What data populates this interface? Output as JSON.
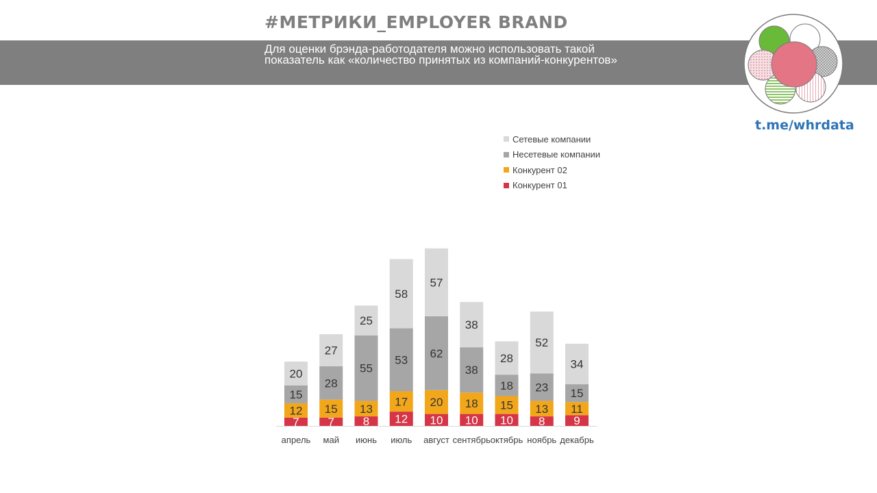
{
  "header": {
    "title": "#МЕТРИКИ_EMPLOYER BRAND",
    "subtitle": "Для оценки брэнда-работодателя можно использовать такой показатель как «количество принятых из компаний-конкурентов»",
    "link": "t.me/whrdata",
    "banner_color": "#7f7f7f"
  },
  "logo": {
    "icon": "logo-circles-icon",
    "colors": [
      "#6aba3a",
      "#e37584",
      "#c9c9c9",
      "#f1d3d9",
      "#a9d08e",
      "#ffffff"
    ]
  },
  "chart_data": {
    "type": "bar",
    "stacked": true,
    "title": "",
    "xlabel": "",
    "ylabel": "",
    "grid": false,
    "legend_position": "top-right",
    "categories": [
      "апрель",
      "май",
      "июнь",
      "июль",
      "август",
      "сентябрь",
      "октябрь",
      "ноябрь",
      "декабрь"
    ],
    "series": [
      {
        "name": "Конкурент 01",
        "color": "#d63447",
        "values": [
          7,
          7,
          8,
          12,
          10,
          10,
          10,
          8,
          9
        ]
      },
      {
        "name": "Конкурент 02",
        "color": "#f2a71b",
        "values": [
          12,
          15,
          13,
          17,
          20,
          18,
          15,
          13,
          11
        ]
      },
      {
        "name": "Несетевые компании",
        "color": "#a6a6a6",
        "values": [
          15,
          28,
          55,
          53,
          62,
          38,
          18,
          23,
          15
        ]
      },
      {
        "name": "Сетевые компании",
        "color": "#d9d9d9",
        "values": [
          20,
          27,
          25,
          58,
          57,
          38,
          28,
          52,
          34
        ]
      }
    ],
    "legend_order": [
      "Сетевые компании",
      "Несетевые компании",
      "Конкурент 02",
      "Конкурент 01"
    ]
  }
}
